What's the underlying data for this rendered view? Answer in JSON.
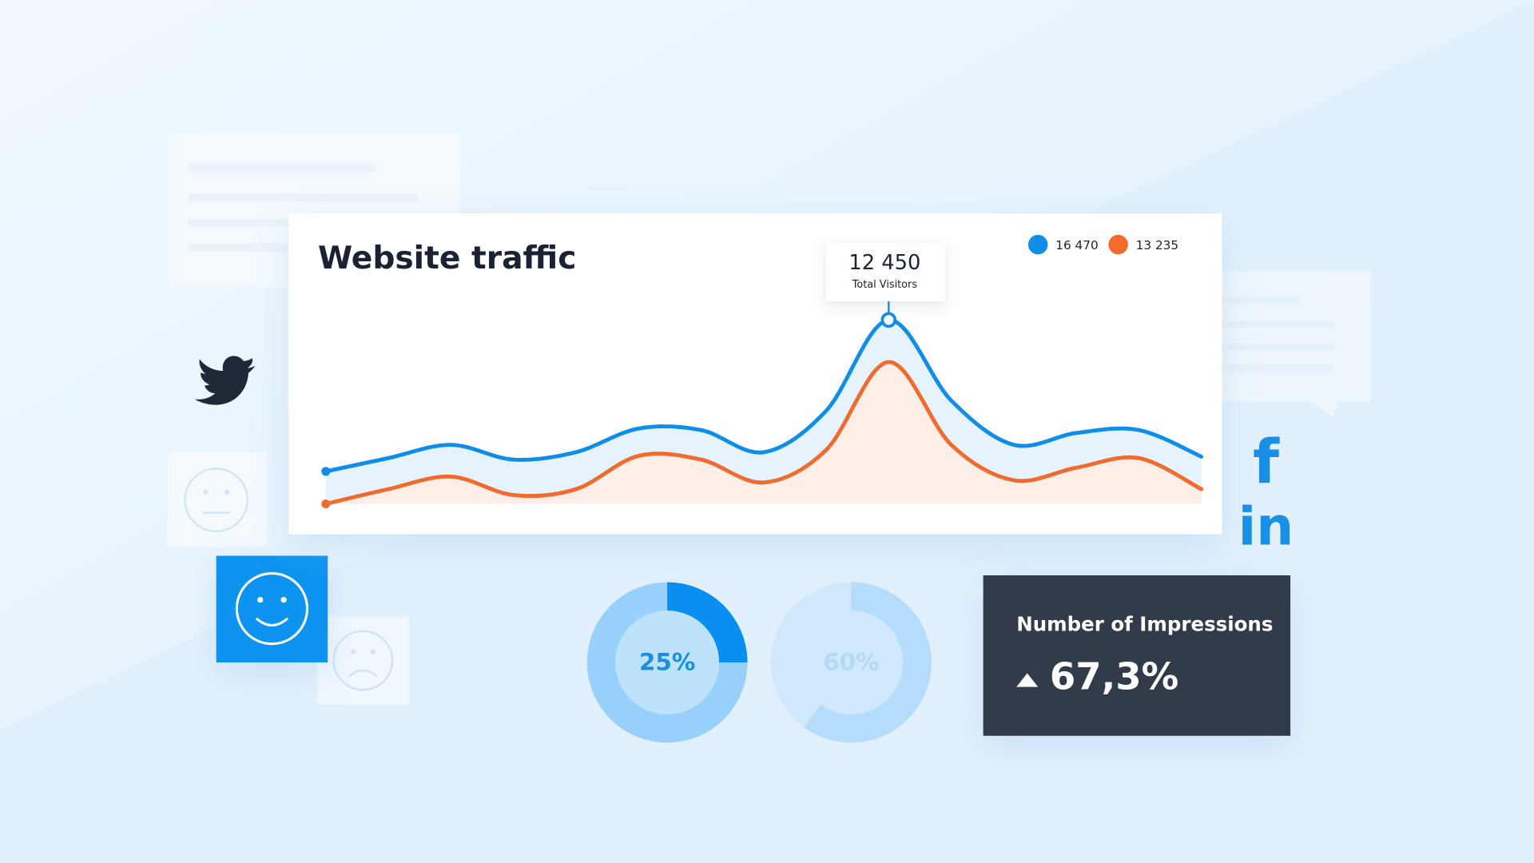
{
  "chart_data": [
    {
      "type": "line",
      "title": "Website traffic",
      "categories": [
        null,
        null,
        null,
        null,
        null,
        null,
        null,
        null,
        null,
        null,
        null,
        null,
        null,
        null,
        null
      ],
      "series": [
        {
          "name": "16 470",
          "color": "#0f8ee9",
          "values": [
            2200,
            3100,
            4000,
            3000,
            3500,
            5100,
            5000,
            3500,
            6300,
            12450,
            7000,
            4000,
            4800,
            5000,
            3200
          ]
        },
        {
          "name": "13 235",
          "color": "#f26a2e",
          "values": [
            0,
            1000,
            1850,
            600,
            1000,
            3250,
            3000,
            1450,
            3650,
            9600,
            4000,
            1600,
            2450,
            3100,
            1000
          ]
        }
      ],
      "annotation": {
        "text": "12 450",
        "subtext": "Total Visitors"
      }
    },
    {
      "type": "donut",
      "values": [
        25
      ],
      "value_labels": [
        "25%"
      ],
      "color": "#0a8ff0",
      "track_color": "#97d0fa",
      "center_color": "#bde2fc",
      "label_color": "#1a8fe0"
    },
    {
      "type": "donut",
      "values": [
        60
      ],
      "value_labels": [
        "60%"
      ],
      "color": "#b5dcfb",
      "track_color": "#cfe8fc",
      "center_color": "#cfe8fc",
      "label_color": "#b3d9f4"
    }
  ],
  "impressions_card": {
    "title": "Number of Impressions",
    "value": "67,3%"
  },
  "social_icons": {
    "facebook": "f",
    "linkedin": "in"
  }
}
